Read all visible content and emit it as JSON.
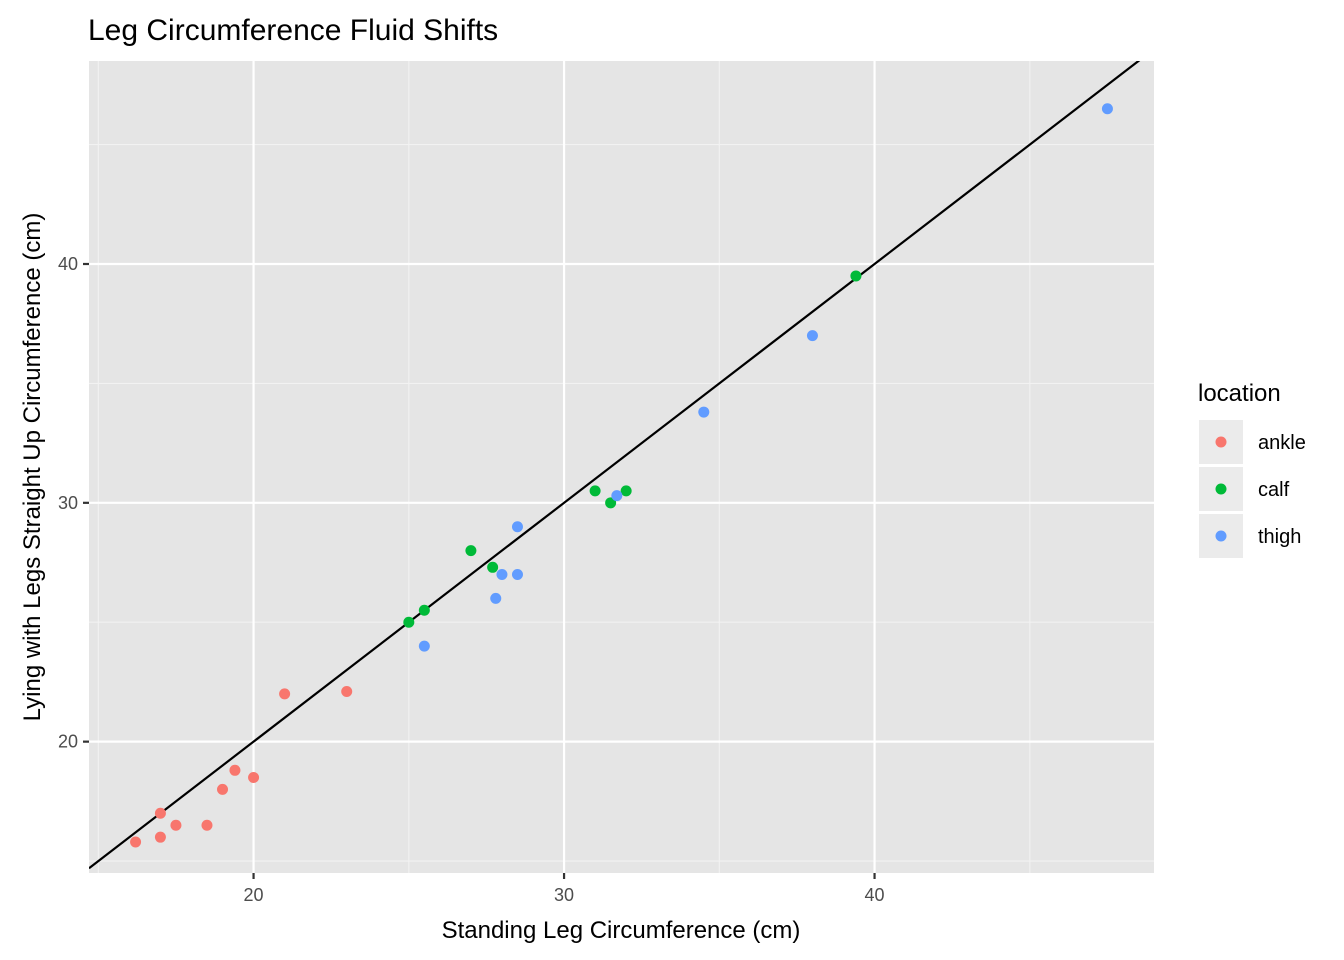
{
  "chart_data": {
    "type": "scatter",
    "title": "Leg Circumference Fluid Shifts",
    "xlabel": "Standing Leg Circumference (cm)",
    "ylabel": "Lying with Legs Straight Up Circumference (cm)",
    "xlim": [
      14.7,
      49.0
    ],
    "ylim": [
      14.5,
      48.5
    ],
    "x_ticks": [
      20,
      30,
      40
    ],
    "y_ticks": [
      20,
      30,
      40
    ],
    "x_minor": [
      15,
      25,
      35,
      45
    ],
    "y_minor": [
      15,
      25,
      35,
      45
    ],
    "grid": true,
    "panel_color": "#e5e5e5",
    "reference_line": {
      "slope": 1,
      "intercept": 0,
      "color": "#000000"
    },
    "legend": {
      "title": "location",
      "position": "right"
    },
    "series": [
      {
        "name": "ankle",
        "color": "#f8766d",
        "points": [
          [
            16.2,
            15.8
          ],
          [
            17.0,
            17.0
          ],
          [
            17.0,
            16.0
          ],
          [
            17.5,
            16.5
          ],
          [
            18.5,
            16.5
          ],
          [
            19.0,
            18.0
          ],
          [
            19.4,
            18.8
          ],
          [
            20.0,
            18.5
          ],
          [
            21.0,
            22.0
          ],
          [
            23.0,
            22.1
          ]
        ]
      },
      {
        "name": "calf",
        "color": "#00ba38",
        "points": [
          [
            25.0,
            25.0
          ],
          [
            25.5,
            25.5
          ],
          [
            27.0,
            28.0
          ],
          [
            27.7,
            27.3
          ],
          [
            31.0,
            30.5
          ],
          [
            31.5,
            30.0
          ],
          [
            32.0,
            30.5
          ],
          [
            39.4,
            39.5
          ]
        ]
      },
      {
        "name": "thigh",
        "color": "#619cff",
        "points": [
          [
            25.5,
            24.0
          ],
          [
            27.8,
            26.0
          ],
          [
            28.0,
            27.0
          ],
          [
            28.5,
            27.0
          ],
          [
            28.5,
            29.0
          ],
          [
            31.7,
            30.3
          ],
          [
            34.5,
            33.8
          ],
          [
            38.0,
            37.0
          ],
          [
            47.5,
            46.5
          ]
        ]
      }
    ]
  }
}
